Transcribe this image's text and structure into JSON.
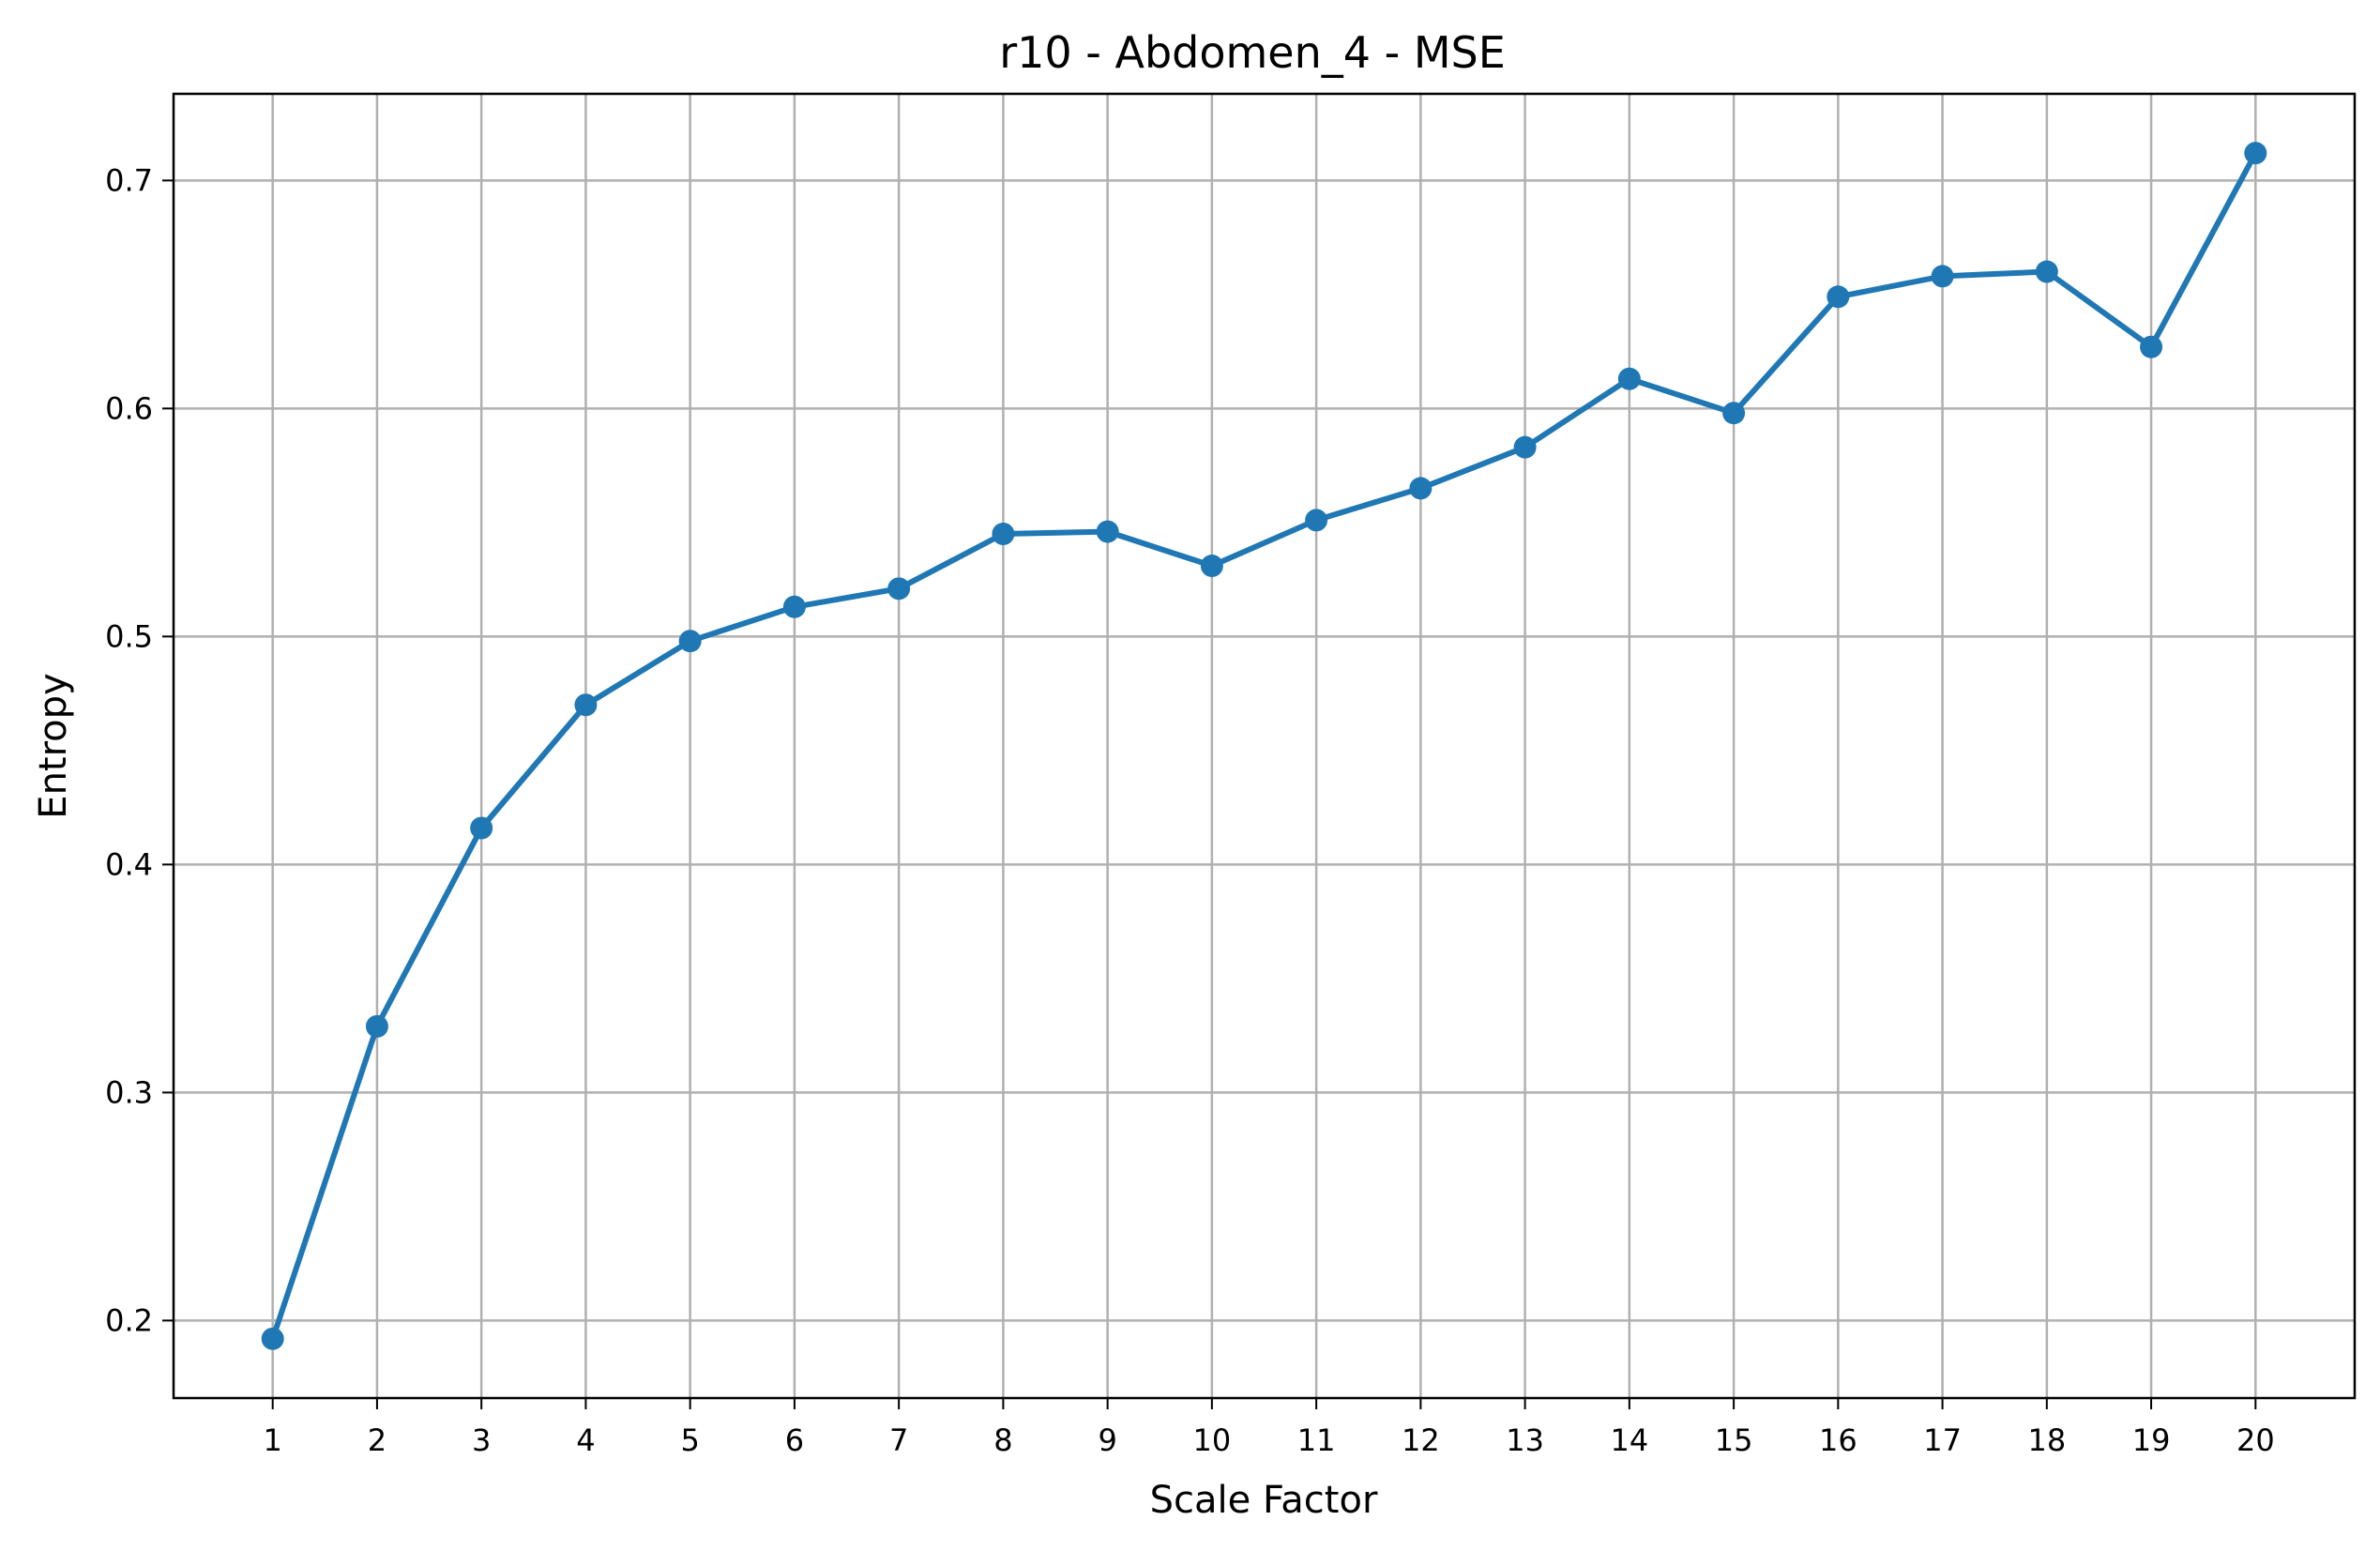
{
  "chart_data": {
    "type": "line",
    "title": "r10 - Abdomen_4 - MSE",
    "xlabel": "Scale Factor",
    "ylabel": "Entropy",
    "x": [
      1,
      2,
      3,
      4,
      5,
      6,
      7,
      8,
      9,
      10,
      11,
      12,
      13,
      14,
      15,
      16,
      17,
      18,
      19,
      20
    ],
    "series": [
      {
        "values": [
          0.192,
          0.329,
          0.416,
          0.47,
          0.498,
          0.513,
          0.521,
          0.545,
          0.546,
          0.531,
          0.551,
          0.565,
          0.583,
          0.613,
          0.598,
          0.649,
          0.658,
          0.66,
          0.627,
          0.712
        ],
        "color": "#1f77b4",
        "marker": "circle"
      }
    ],
    "xlim": [
      0.05,
      20.95
    ],
    "ylim": [
      0.166,
      0.738
    ],
    "xticks": [
      "1",
      "2",
      "3",
      "4",
      "5",
      "6",
      "7",
      "8",
      "9",
      "10",
      "11",
      "12",
      "13",
      "14",
      "15",
      "16",
      "17",
      "18",
      "19",
      "20"
    ],
    "yticks": [
      0.2,
      0.3,
      0.4,
      0.5,
      0.6,
      0.7
    ],
    "ytick_labels": [
      "0.2",
      "0.3",
      "0.4",
      "0.5",
      "0.6",
      "0.7"
    ],
    "grid": true,
    "legend": "none"
  }
}
